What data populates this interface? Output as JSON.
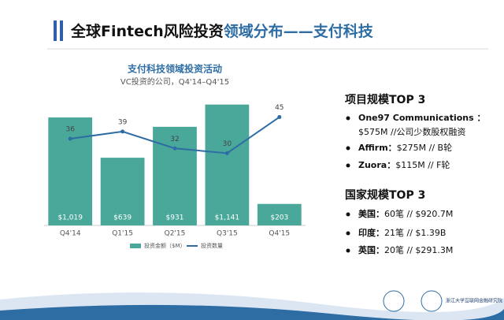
{
  "slide_title": {
    "lead": "全球Fintech风险投资",
    "accent": "领域分布——支付科技"
  },
  "chart_data": {
    "type": "bar",
    "title": "支付科技领域投资活动",
    "subtitle": "VC投资的公司，Q4'14–Q4'15",
    "categories": [
      "Q4'14",
      "Q1'15",
      "Q2'15",
      "Q3'15",
      "Q4'15"
    ],
    "series": [
      {
        "name": "投资金额（$M）",
        "color": "#4aa89a",
        "values": [
          1019,
          639,
          931,
          1141,
          203
        ],
        "value_labels": [
          "$1,019",
          "$639",
          "$931",
          "$1,141",
          "$203"
        ]
      },
      {
        "name": "投资数量",
        "color": "#2e6da4",
        "type": "line",
        "axis": "y2",
        "values": [
          36,
          39,
          32,
          30,
          45
        ]
      }
    ],
    "ylim": [
      0,
      1250
    ],
    "y2lim": [
      0,
      55
    ],
    "legend": "bottom"
  },
  "sections": [
    {
      "heading": "项目规模TOP 3",
      "items": [
        {
          "name": "One97 Communications ：",
          "detail": "$575M //公司少数股权融资"
        },
        {
          "name": "Affirm：",
          "detail": "$275M // B轮"
        },
        {
          "name": "Zuora：",
          "detail": "$115M // F轮"
        }
      ]
    },
    {
      "heading": "国家规模TOP 3",
      "items": [
        {
          "name": "美国：",
          "detail": "60笔 // $920.7M"
        },
        {
          "name": "印度：",
          "detail": "21笔 // $1.39B"
        },
        {
          "name": "英国：",
          "detail": "20笔 // $291.3M"
        }
      ]
    }
  ],
  "footer": {
    "org": "浙江大学互联网金融研究院"
  }
}
